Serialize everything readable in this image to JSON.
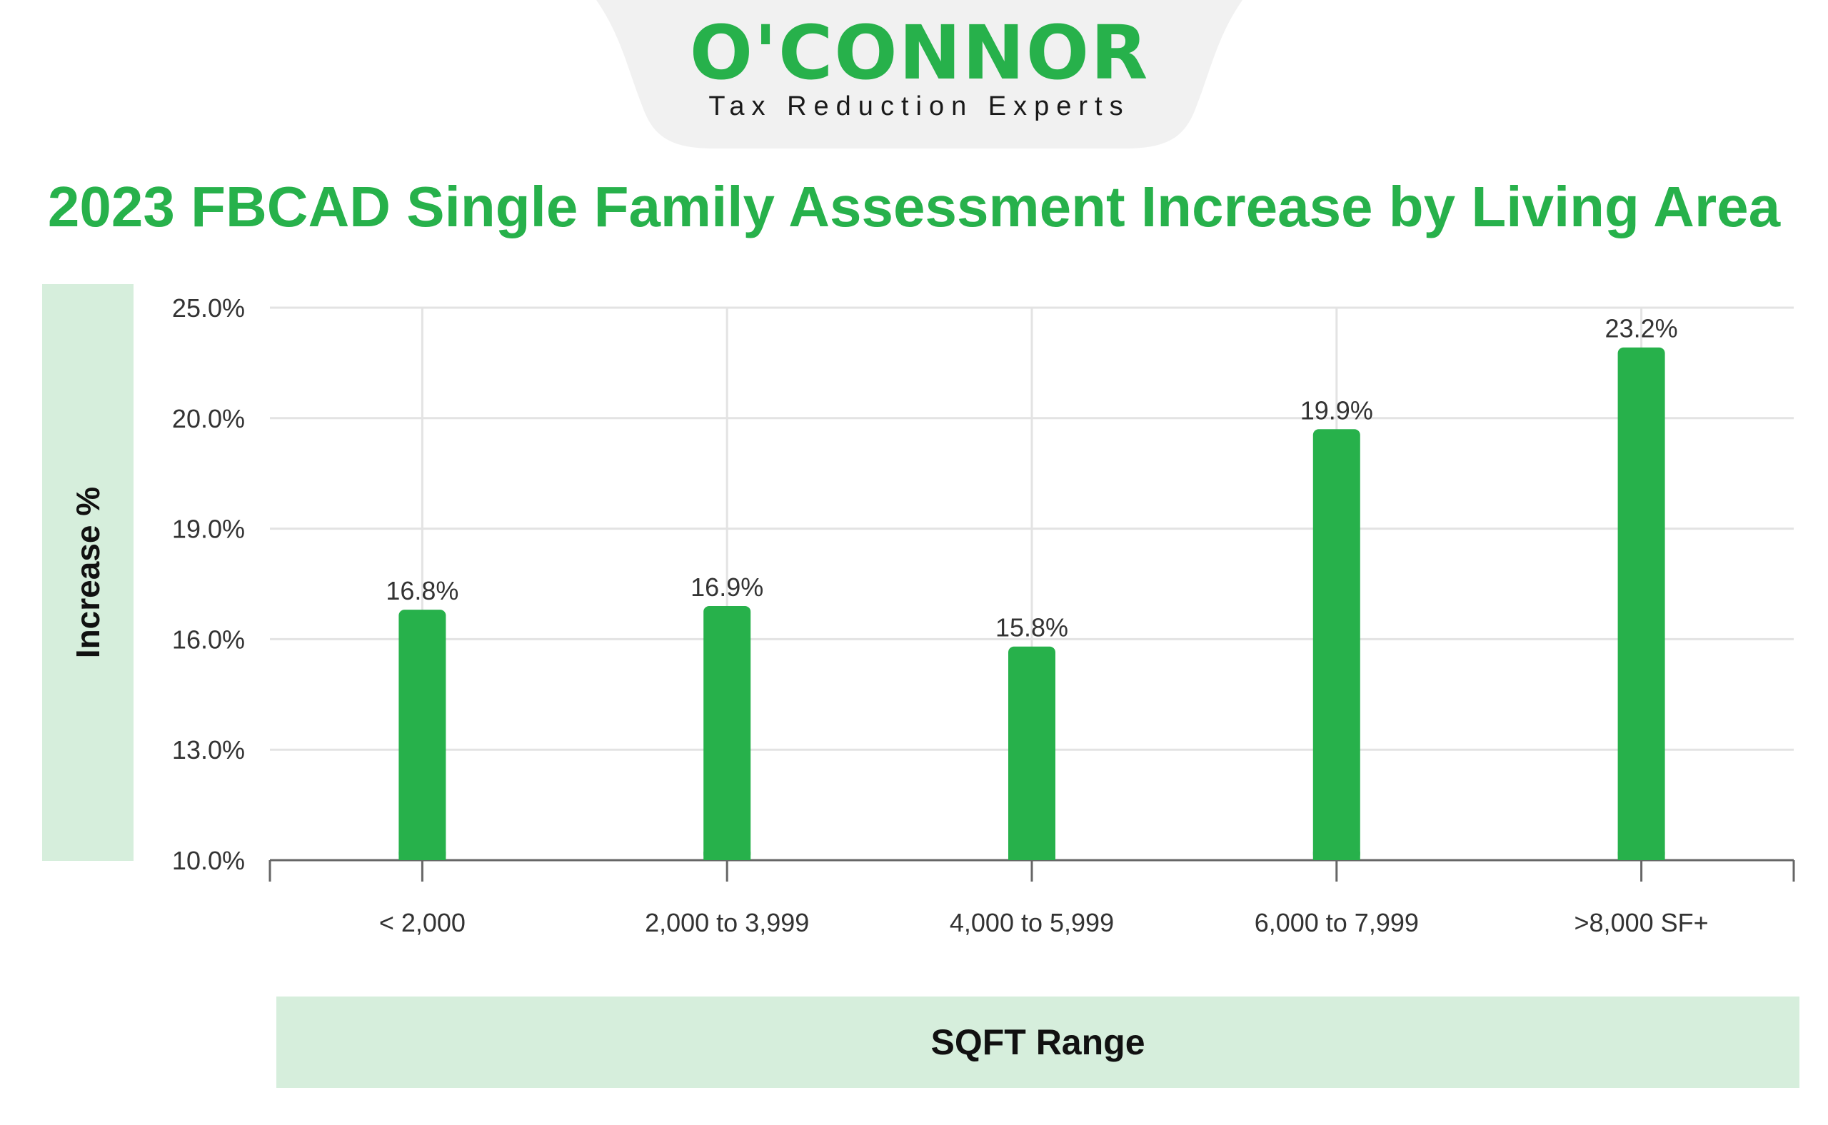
{
  "logo": {
    "wordmark": "O'CONNOR",
    "tagline": "Tax Reduction Experts"
  },
  "chart_data": {
    "type": "bar",
    "title": "2023 FBCAD Single Family Assessment Increase by Living Area",
    "xlabel": "SQFT Range",
    "ylabel": "Increase %",
    "categories": [
      "< 2,000",
      "2,000 to 3,999",
      "4,000 to 5,999",
      "6,000 to 7,999",
      ">8,000 SF+"
    ],
    "values": [
      16.8,
      16.9,
      15.8,
      19.9,
      23.2
    ],
    "value_labels": [
      "16.8%",
      "16.9%",
      "15.8%",
      "19.9%",
      "23.2%"
    ],
    "yticks": [
      "10.0%",
      "13.0%",
      "16.0%",
      "19.0%",
      "20.0%",
      "25.0%"
    ],
    "grid": true,
    "legend": "none",
    "bar_color": "#27b14b"
  }
}
